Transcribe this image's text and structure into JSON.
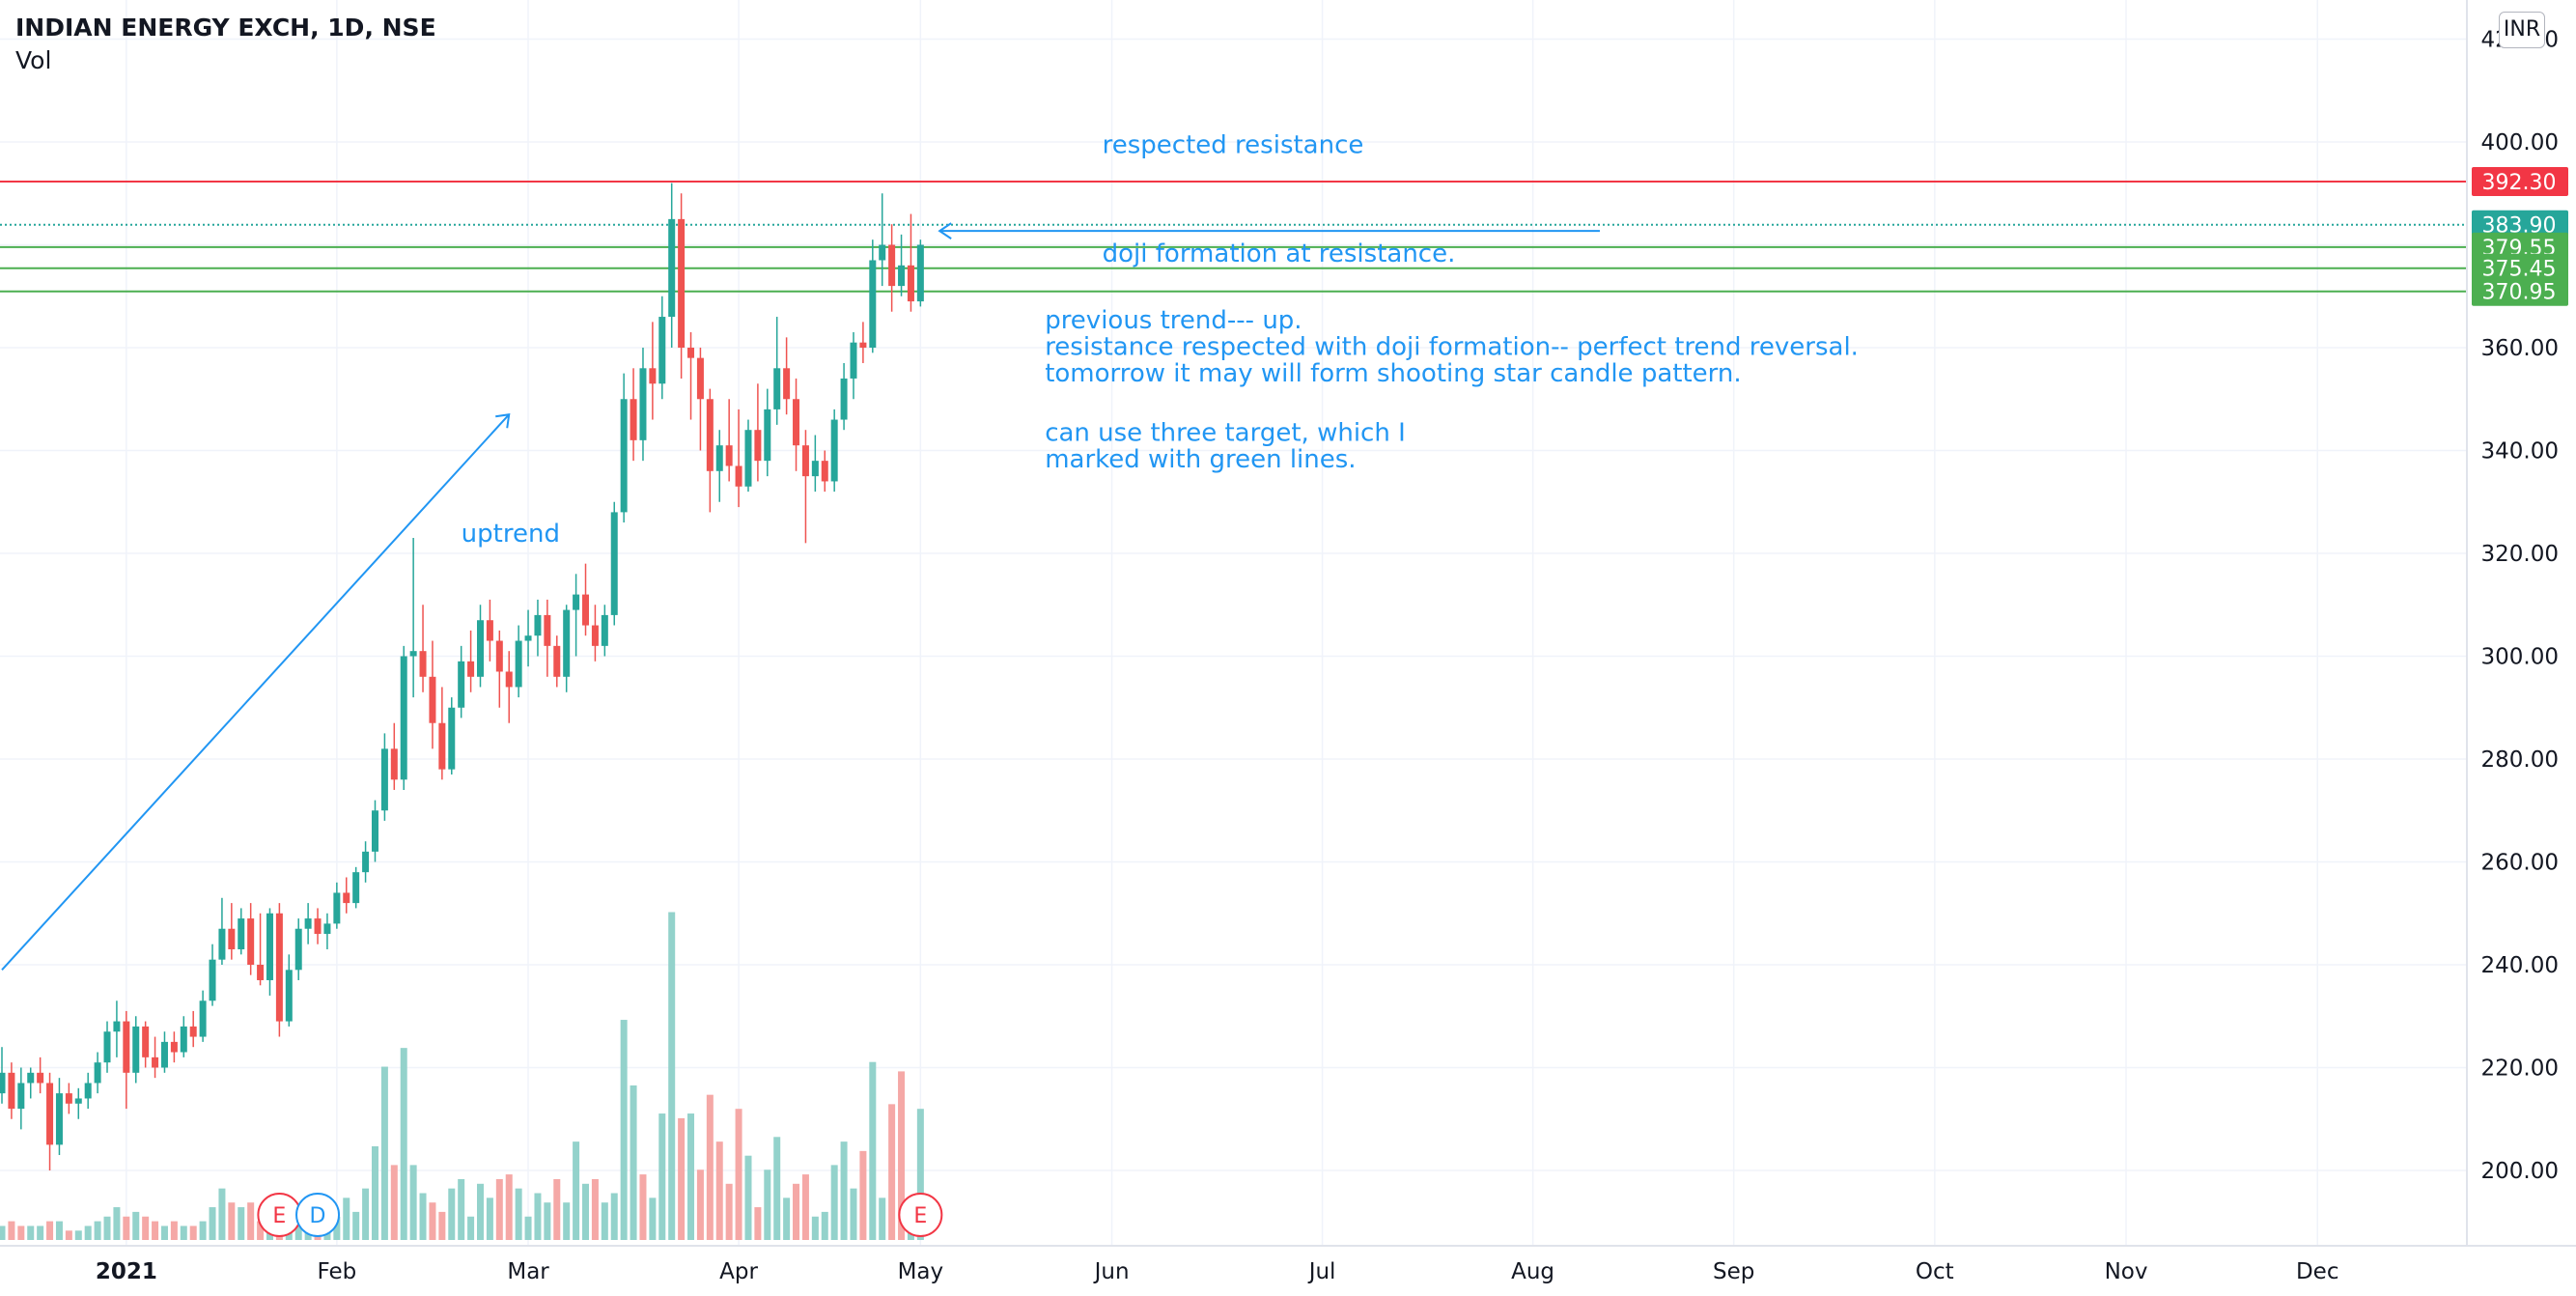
{
  "header": {
    "title": "INDIAN ENERGY EXCH, 1D, NSE",
    "indicator": "Vol",
    "currency": "INR"
  },
  "colors": {
    "up": "#26a69a",
    "down": "#ef5350",
    "vol_up": "#93d2cb",
    "vol_down": "#f5a8a6",
    "annotation": "#2196f3",
    "resistance": "#f23645",
    "target": "#4caf50",
    "current": "#26a69a",
    "grid": "#f0f3fa",
    "axis_text": "#131722"
  },
  "chart_data": {
    "type": "candlestick",
    "symbol": "INDIAN ENERGY EXCH",
    "timeframe": "1D",
    "exchange": "NSE",
    "y_axis": {
      "min": 180,
      "max": 420,
      "ticks": [
        "200.00",
        "220.00",
        "240.00",
        "260.00",
        "280.00",
        "300.00",
        "320.00",
        "340.00",
        "360.00",
        "380.00",
        "400.00",
        "420.00"
      ],
      "ticks_values": [
        200,
        220,
        240,
        260,
        280,
        300,
        320,
        340,
        360,
        380,
        400,
        420
      ]
    },
    "x_axis": {
      "labels": [
        "2021",
        "Feb",
        "Mar",
        "Apr",
        "May",
        "Jun",
        "Jul",
        "Aug",
        "Sep",
        "Oct",
        "Nov",
        "Dec"
      ],
      "label_bar_index": [
        13,
        35,
        55,
        77,
        96,
        116,
        138,
        160,
        181,
        202,
        222,
        242
      ]
    },
    "candles_ohlc": [
      [
        215,
        224,
        213,
        219
      ],
      [
        219,
        221,
        210,
        212
      ],
      [
        212,
        220,
        208,
        217
      ],
      [
        217,
        220,
        214,
        219
      ],
      [
        219,
        222,
        215,
        217
      ],
      [
        217,
        219,
        200,
        205
      ],
      [
        205,
        218,
        203,
        215
      ],
      [
        215,
        217,
        211,
        213
      ],
      [
        213,
        216,
        210,
        214
      ],
      [
        214,
        219,
        212,
        217
      ],
      [
        217,
        223,
        215,
        221
      ],
      [
        221,
        229,
        219,
        227
      ],
      [
        227,
        233,
        222,
        229
      ],
      [
        229,
        231,
        212,
        219
      ],
      [
        219,
        230,
        217,
        228
      ],
      [
        228,
        229,
        220,
        222
      ],
      [
        222,
        226,
        218,
        220
      ],
      [
        220,
        227,
        219,
        225
      ],
      [
        225,
        227,
        221,
        223
      ],
      [
        223,
        230,
        222,
        228
      ],
      [
        228,
        231,
        224,
        226
      ],
      [
        226,
        235,
        225,
        233
      ],
      [
        233,
        244,
        232,
        241
      ],
      [
        241,
        253,
        240,
        247
      ],
      [
        247,
        252,
        241,
        243
      ],
      [
        243,
        251,
        242,
        249
      ],
      [
        249,
        252,
        238,
        240
      ],
      [
        240,
        250,
        236,
        237
      ],
      [
        237,
        251,
        234,
        250
      ],
      [
        250,
        252,
        226,
        229
      ],
      [
        229,
        242,
        228,
        239
      ],
      [
        239,
        249,
        237,
        247
      ],
      [
        247,
        252,
        244,
        249
      ],
      [
        249,
        251,
        244,
        246
      ],
      [
        246,
        250,
        243,
        248
      ],
      [
        248,
        256,
        247,
        254
      ],
      [
        254,
        257,
        250,
        252
      ],
      [
        252,
        259,
        251,
        258
      ],
      [
        258,
        264,
        256,
        262
      ],
      [
        262,
        272,
        260,
        270
      ],
      [
        270,
        285,
        268,
        282
      ],
      [
        282,
        287,
        274,
        276
      ],
      [
        276,
        302,
        274,
        300
      ],
      [
        300,
        323,
        292,
        301
      ],
      [
        301,
        310,
        293,
        296
      ],
      [
        296,
        303,
        282,
        287
      ],
      [
        287,
        294,
        276,
        278
      ],
      [
        278,
        292,
        277,
        290
      ],
      [
        290,
        302,
        288,
        299
      ],
      [
        299,
        305,
        293,
        296
      ],
      [
        296,
        310,
        294,
        307
      ],
      [
        307,
        311,
        299,
        303
      ],
      [
        303,
        305,
        290,
        297
      ],
      [
        297,
        301,
        287,
        294
      ],
      [
        294,
        306,
        292,
        303
      ],
      [
        303,
        309,
        298,
        304
      ],
      [
        304,
        311,
        300,
        308
      ],
      [
        308,
        311,
        296,
        302
      ],
      [
        302,
        304,
        294,
        296
      ],
      [
        296,
        310,
        293,
        309
      ],
      [
        309,
        316,
        300,
        312
      ],
      [
        312,
        318,
        304,
        306
      ],
      [
        306,
        310,
        299,
        302
      ],
      [
        302,
        310,
        300,
        308
      ],
      [
        308,
        330,
        306,
        328
      ],
      [
        328,
        355,
        326,
        350
      ],
      [
        350,
        356,
        338,
        342
      ],
      [
        342,
        360,
        338,
        356
      ],
      [
        356,
        365,
        346,
        353
      ],
      [
        353,
        370,
        350,
        366
      ],
      [
        366,
        392,
        360,
        385
      ],
      [
        385,
        390,
        354,
        360
      ],
      [
        360,
        363,
        346,
        358
      ],
      [
        358,
        360,
        340,
        350
      ],
      [
        350,
        352,
        328,
        336
      ],
      [
        336,
        344,
        330,
        341
      ],
      [
        341,
        350,
        334,
        337
      ],
      [
        337,
        348,
        329,
        333
      ],
      [
        333,
        346,
        332,
        344
      ],
      [
        344,
        353,
        334,
        338
      ],
      [
        338,
        352,
        335,
        348
      ],
      [
        348,
        366,
        345,
        356
      ],
      [
        356,
        362,
        347,
        350
      ],
      [
        350,
        354,
        336,
        341
      ],
      [
        341,
        344,
        322,
        335
      ],
      [
        335,
        343,
        332,
        338
      ],
      [
        338,
        340,
        332,
        334
      ],
      [
        334,
        348,
        332,
        346
      ],
      [
        346,
        357,
        344,
        354
      ],
      [
        354,
        363,
        350,
        361
      ],
      [
        361,
        365,
        357,
        360
      ],
      [
        360,
        381,
        359,
        377
      ],
      [
        377,
        390,
        372,
        380
      ],
      [
        380,
        384,
        367,
        372
      ],
      [
        372,
        382,
        370,
        376
      ],
      [
        376,
        386,
        367,
        369
      ],
      [
        369,
        381,
        368,
        380
      ]
    ],
    "volume_relative": [
      [
        3,
        1
      ],
      [
        4,
        0
      ],
      [
        3,
        0
      ],
      [
        3,
        1
      ],
      [
        3,
        1
      ],
      [
        4,
        0
      ],
      [
        4,
        1
      ],
      [
        2,
        0
      ],
      [
        2,
        1
      ],
      [
        3,
        1
      ],
      [
        4,
        1
      ],
      [
        5,
        1
      ],
      [
        7,
        1
      ],
      [
        5,
        0
      ],
      [
        6,
        1
      ],
      [
        5,
        0
      ],
      [
        4,
        0
      ],
      [
        3,
        1
      ],
      [
        4,
        0
      ],
      [
        3,
        1
      ],
      [
        3,
        0
      ],
      [
        4,
        1
      ],
      [
        7,
        1
      ],
      [
        11,
        1
      ],
      [
        8,
        0
      ],
      [
        7,
        1
      ],
      [
        8,
        0
      ],
      [
        4,
        0
      ],
      [
        5,
        1
      ],
      [
        8,
        0
      ],
      [
        4,
        1
      ],
      [
        5,
        1
      ],
      [
        4,
        1
      ],
      [
        3,
        0
      ],
      [
        4,
        1
      ],
      [
        5,
        1
      ],
      [
        9,
        1
      ],
      [
        6,
        1
      ],
      [
        11,
        1
      ],
      [
        20,
        1
      ],
      [
        37,
        1
      ],
      [
        16,
        0
      ],
      [
        41,
        1
      ],
      [
        16,
        1
      ],
      [
        10,
        1
      ],
      [
        8,
        0
      ],
      [
        6,
        0
      ],
      [
        11,
        1
      ],
      [
        13,
        1
      ],
      [
        5,
        1
      ],
      [
        12,
        1
      ],
      [
        9,
        1
      ],
      [
        13,
        0
      ],
      [
        14,
        0
      ],
      [
        11,
        1
      ],
      [
        5,
        1
      ],
      [
        10,
        1
      ],
      [
        8,
        1
      ],
      [
        13,
        0
      ],
      [
        8,
        1
      ],
      [
        21,
        1
      ],
      [
        12,
        1
      ],
      [
        13,
        0
      ],
      [
        8,
        1
      ],
      [
        10,
        1
      ],
      [
        47,
        1
      ],
      [
        33,
        1
      ],
      [
        14,
        0
      ],
      [
        9,
        1
      ],
      [
        27,
        1
      ],
      [
        70,
        1
      ],
      [
        26,
        0
      ],
      [
        27,
        1
      ],
      [
        15,
        0
      ],
      [
        31,
        0
      ],
      [
        21,
        0
      ],
      [
        12,
        0
      ],
      [
        28,
        0
      ],
      [
        18,
        1
      ],
      [
        7,
        0
      ],
      [
        15,
        1
      ],
      [
        22,
        1
      ],
      [
        9,
        1
      ],
      [
        12,
        0
      ],
      [
        14,
        0
      ],
      [
        5,
        1
      ],
      [
        6,
        1
      ],
      [
        16,
        1
      ],
      [
        21,
        1
      ],
      [
        11,
        1
      ],
      [
        19,
        0
      ],
      [
        38,
        1
      ],
      [
        9,
        1
      ],
      [
        29,
        0
      ],
      [
        36,
        0
      ],
      [
        9,
        1
      ],
      [
        28,
        1
      ]
    ],
    "horizontal_levels": [
      {
        "value": 392.3,
        "label": "392.30",
        "kind": "resistance"
      },
      {
        "value": 383.9,
        "label": "383.90",
        "kind": "current"
      },
      {
        "value": 379.55,
        "label": "379.55",
        "kind": "target"
      },
      {
        "value": 375.45,
        "label": "375.45",
        "kind": "target"
      },
      {
        "value": 370.95,
        "label": "370.95",
        "kind": "target"
      }
    ],
    "event_markers": [
      {
        "label": "E",
        "bar": 29,
        "kind": "earnings"
      },
      {
        "label": "D",
        "bar": 33,
        "kind": "dividend"
      },
      {
        "label": "E",
        "bar": 96,
        "kind": "earnings"
      }
    ],
    "trend_line": {
      "from_bar": 0,
      "from_price": 239,
      "to_bar": 53,
      "to_price": 347
    },
    "arrow": {
      "from_bar": 167,
      "to_bar": 98,
      "price": 382.7
    },
    "annotations": [
      {
        "text": "respected resistance",
        "bar": 115,
        "price": 397.8
      },
      {
        "text": "doji formation at resistance.",
        "bar": 115,
        "price": 376.7
      },
      {
        "text": "previous trend--- up.",
        "bar": 109,
        "price": 363.8
      },
      {
        "text": "resistance respected with doji formation-- perfect trend reversal.",
        "bar": 109,
        "price": 358.6
      },
      {
        "text": "tomorrow it may will form shooting star candle pattern.",
        "bar": 109,
        "price": 353.4
      },
      {
        "text": "can use three target, which I",
        "bar": 109,
        "price": 341.9
      },
      {
        "text": "marked with green lines.",
        "bar": 109,
        "price": 336.7
      },
      {
        "text": "uptrend",
        "bar": 48,
        "price": 322.3
      }
    ],
    "grid": true,
    "legend": "none"
  }
}
